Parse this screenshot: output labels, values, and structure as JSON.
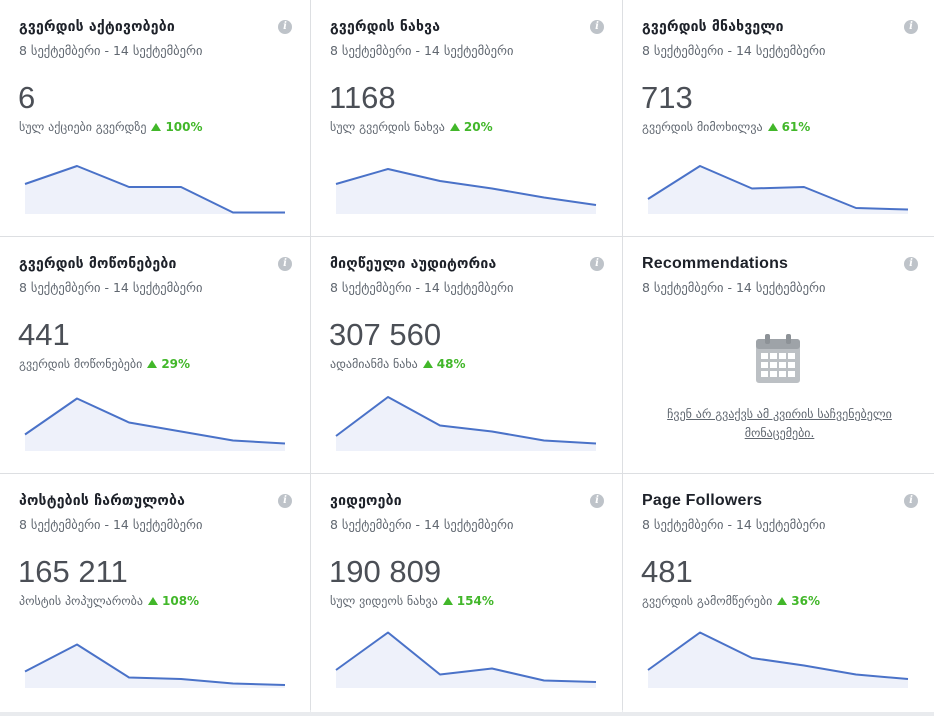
{
  "date_range": "8 სექტემბერი - 14 სექტემბერი",
  "info_glyph": "i",
  "colors": {
    "line": "#4a72c8",
    "fill": "#eef1fa",
    "up": "#42b72a",
    "muted": "#606770"
  },
  "cards": [
    {
      "title": "გვერდის აქტივობები",
      "value": "6",
      "label": "სულ აქციები გვერდზე",
      "delta": "100%",
      "spark": [
        1.0,
        1.6,
        0.9,
        0.9,
        0.05,
        0.05
      ]
    },
    {
      "title": "გვერდის ნახვა",
      "value": "1168",
      "label": "სულ გვერდის ნახვა",
      "delta": "20%",
      "spark": [
        1.0,
        1.5,
        1.1,
        0.85,
        0.55,
        0.3
      ]
    },
    {
      "title": "გვერდის მნახველი",
      "value": "713",
      "label": "გვერდის მიმოხილვა",
      "delta": "61%",
      "spark": [
        0.5,
        1.6,
        0.85,
        0.9,
        0.2,
        0.15
      ]
    },
    {
      "title": "გვერდის მოწონებები",
      "value": "441",
      "label": "გვერდის მოწონებები",
      "delta": "29%",
      "spark": [
        0.55,
        1.75,
        0.95,
        0.65,
        0.35,
        0.25
      ]
    },
    {
      "title": "მიღწეული აუდიტორია",
      "value": "307 560",
      "label": "ადამიანმა ნახა",
      "delta": "48%",
      "spark": [
        0.5,
        1.8,
        0.85,
        0.65,
        0.35,
        0.25
      ]
    },
    {
      "title": "Recommendations",
      "empty_message": "ჩვენ არ გვაქვს ამ კვირის საჩვენებელი მონაცემები.",
      "icon": "calendar-icon"
    },
    {
      "title": "პოსტების ჩართულობა",
      "value": "165 211",
      "label": "პოსტის პოპულარობა",
      "delta": "108%",
      "spark": [
        0.55,
        1.45,
        0.35,
        0.3,
        0.15,
        0.1
      ]
    },
    {
      "title": "ვიდეოები",
      "value": "190 809",
      "label": "სულ ვიდეოს ნახვა",
      "delta": "154%",
      "spark": [
        0.6,
        1.85,
        0.45,
        0.65,
        0.25,
        0.2
      ]
    },
    {
      "title": "Page Followers",
      "value": "481",
      "label": "გვერდის გამომწერები",
      "delta": "36%",
      "spark": [
        0.6,
        1.85,
        1.0,
        0.75,
        0.45,
        0.3
      ]
    }
  ]
}
